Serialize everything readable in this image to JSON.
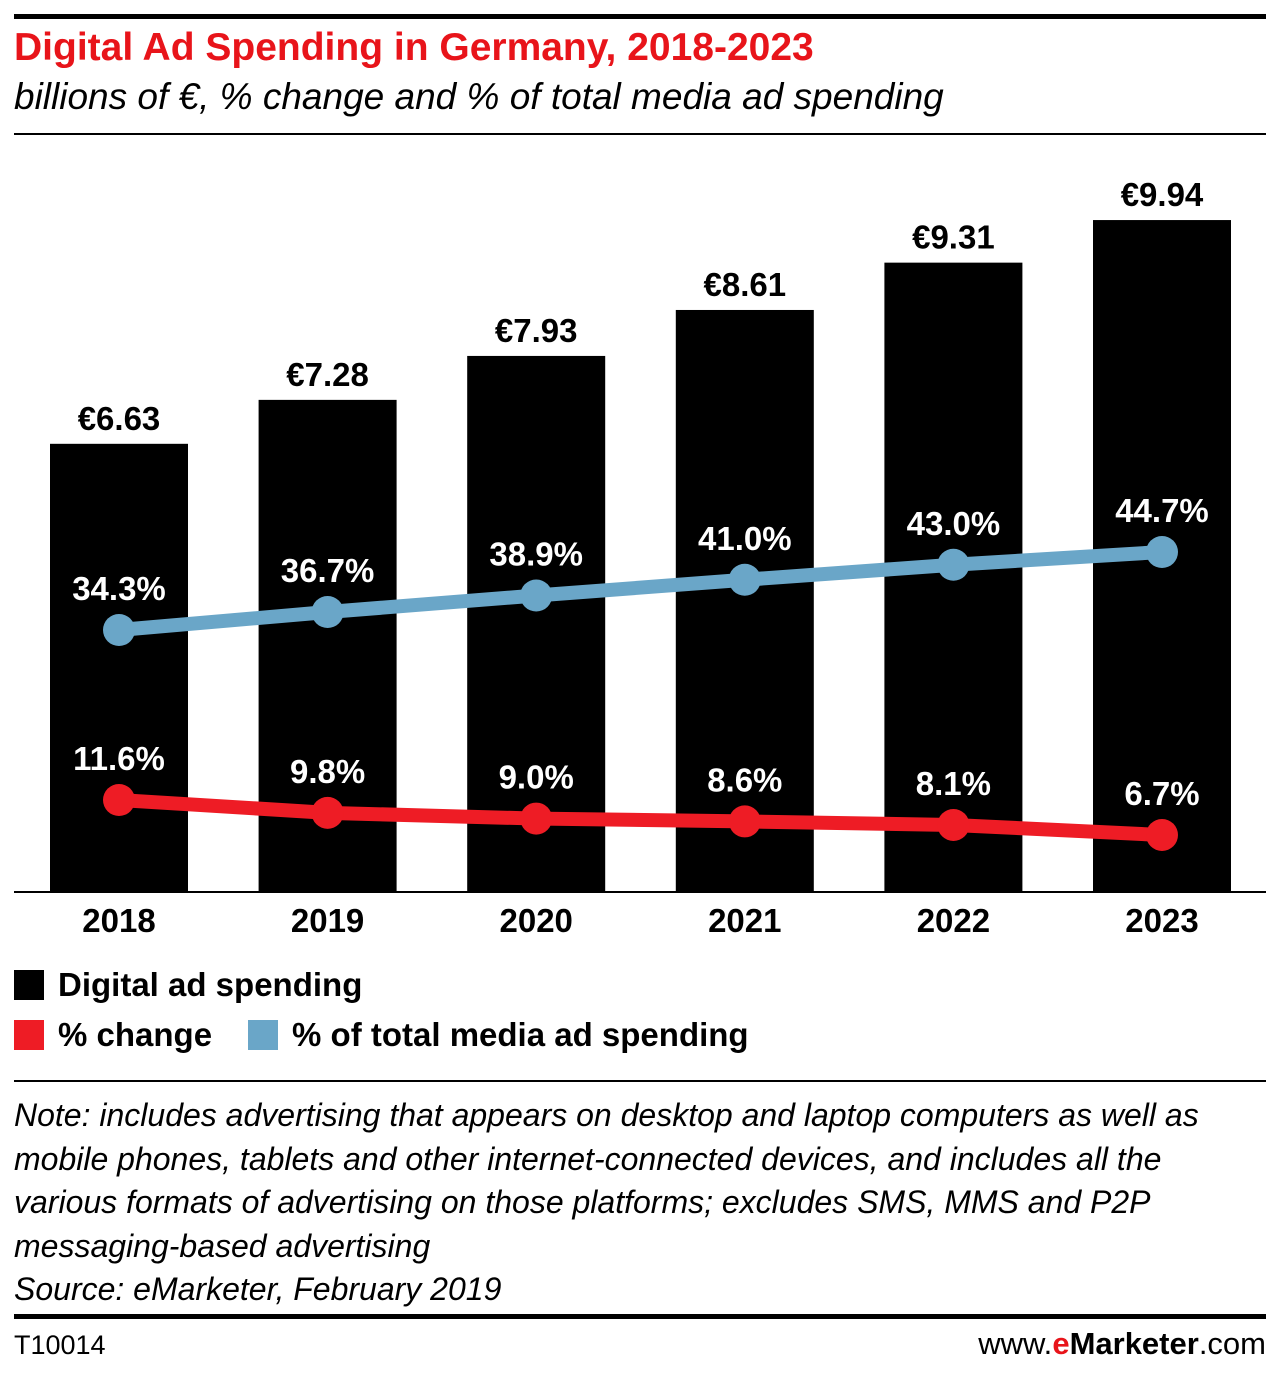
{
  "header": {
    "title": "Digital Ad Spending in Germany, 2018-2023",
    "subtitle": "billions of €, % change and % of total media ad spending"
  },
  "chart_data": {
    "type": "bar",
    "categories": [
      "2018",
      "2019",
      "2020",
      "2021",
      "2022",
      "2023"
    ],
    "series": [
      {
        "name": "Digital ad spending",
        "kind": "bar",
        "color": "#000000",
        "values": [
          6.63,
          7.28,
          7.93,
          8.61,
          9.31,
          9.94
        ],
        "labels": [
          "€6.63",
          "€7.28",
          "€7.93",
          "€8.61",
          "€9.31",
          "€9.94"
        ]
      },
      {
        "name": "% change",
        "kind": "line",
        "color": "#ee1c25",
        "values": [
          11.6,
          9.8,
          9.0,
          8.6,
          8.1,
          6.7
        ],
        "labels": [
          "11.6%",
          "9.8%",
          "9.0%",
          "8.6%",
          "8.1%",
          "6.7%"
        ]
      },
      {
        "name": "% of total media ad spending",
        "kind": "line",
        "color": "#6aa6c8",
        "values": [
          34.3,
          36.7,
          38.9,
          41.0,
          43.0,
          44.7
        ],
        "labels": [
          "34.3%",
          "36.7%",
          "38.9%",
          "41.0%",
          "43.0%",
          "44.7%"
        ]
      }
    ],
    "legend_placement": "bottom-left",
    "grid": false
  },
  "note": {
    "text": "Note: includes advertising that appears on desktop and laptop computers as well as mobile phones, tablets and other internet-connected devices, and includes all the various formats of advertising on those platforms; excludes SMS, MMS and P2P messaging-based advertising",
    "source": "Source: eMarketer, February 2019"
  },
  "footer": {
    "chart_id": "T10014",
    "url_prefix": "www.",
    "brand_e": "e",
    "brand_rest": "Marketer",
    "url_suffix": ".com"
  }
}
